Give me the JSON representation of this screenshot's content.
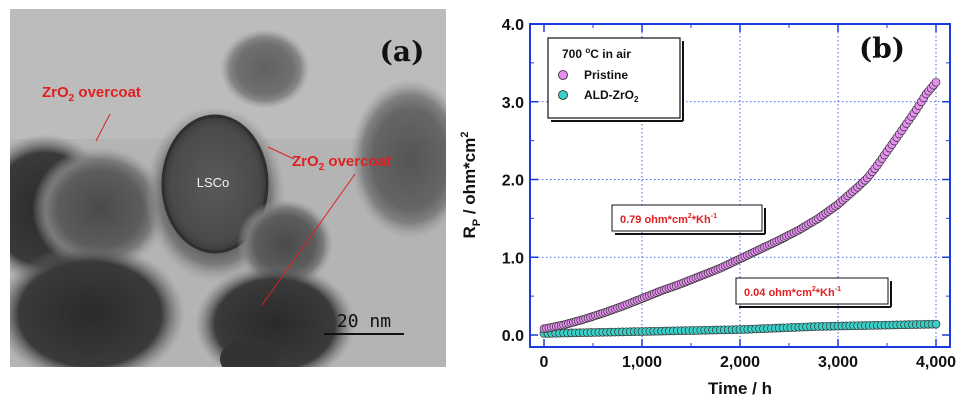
{
  "panel_a": {
    "label": "(a)",
    "annotations": [
      {
        "main": "ZrO",
        "sub": "2",
        "rest": " overcoat"
      },
      {
        "main": "ZrO",
        "sub": "2",
        "rest": " overcoat"
      }
    ],
    "particle_label": "LSCo",
    "scale_bar": "20 nm"
  },
  "chart_data": {
    "type": "scatter",
    "panel_label": "(b)",
    "xlabel": "Time / h",
    "ylabel_main": "R",
    "ylabel_sub": "P",
    "ylabel_rest": " / ohm*cm",
    "ylabel_sup": "2",
    "xlim": [
      0,
      4000
    ],
    "ylim": [
      0,
      4.0
    ],
    "x_ticks": [
      0,
      1000,
      2000,
      3000,
      4000
    ],
    "x_tick_labels": [
      "0",
      "1,000",
      "2,000",
      "3,000",
      "4,000"
    ],
    "y_ticks": [
      0,
      1,
      2,
      3,
      4
    ],
    "y_tick_labels": [
      "0.0",
      "1.0",
      "2.0",
      "3.0",
      "4.0"
    ],
    "grid": true,
    "legend_position": "top-left",
    "legend_title": "700 °C in air",
    "series": [
      {
        "name": "Pristine",
        "color": "#e58ff0",
        "x": [
          0,
          200,
          400,
          600,
          800,
          1000,
          1200,
          1400,
          1600,
          1800,
          2000,
          2200,
          2400,
          2600,
          2800,
          3000,
          3200,
          3300,
          3400,
          3500,
          3600,
          3700,
          3800,
          3900,
          4000
        ],
        "y": [
          0.08,
          0.13,
          0.2,
          0.28,
          0.37,
          0.47,
          0.57,
          0.66,
          0.76,
          0.86,
          0.98,
          1.1,
          1.22,
          1.35,
          1.5,
          1.68,
          1.9,
          2.02,
          2.18,
          2.36,
          2.54,
          2.72,
          2.9,
          3.1,
          3.25
        ]
      },
      {
        "name": "ALD-ZrO2",
        "color": "#3ad0c8",
        "x": [
          0,
          400,
          800,
          1200,
          1600,
          2000,
          2400,
          2800,
          3200,
          3600,
          4000
        ],
        "y": [
          0.02,
          0.03,
          0.04,
          0.05,
          0.06,
          0.07,
          0.09,
          0.11,
          0.12,
          0.13,
          0.14
        ]
      }
    ],
    "annotations": [
      {
        "text": "0.79 ohm*cm",
        "sup": "2",
        "tail": "*Kh",
        "tail_sup": "-1"
      },
      {
        "text": "0.04 ohm*cm",
        "sup": "2",
        "tail": "*Kh",
        "tail_sup": "-1"
      }
    ]
  }
}
